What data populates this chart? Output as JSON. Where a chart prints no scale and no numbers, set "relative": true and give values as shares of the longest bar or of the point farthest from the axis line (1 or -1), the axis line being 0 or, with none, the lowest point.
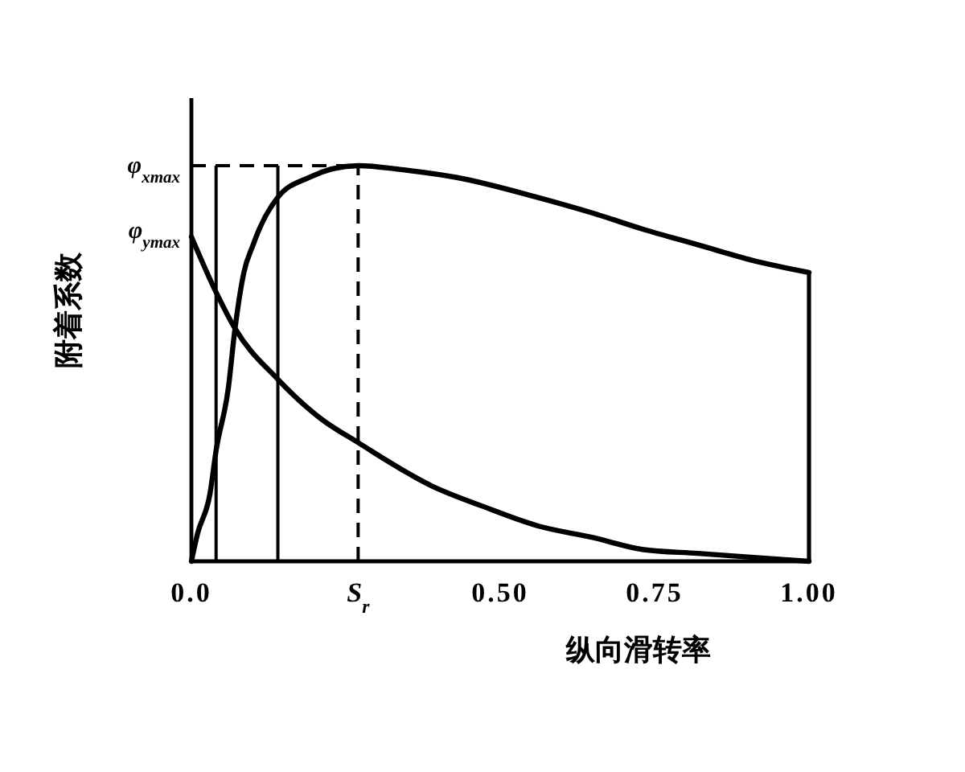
{
  "chart_data": {
    "type": "line",
    "relative": true,
    "xlabel": "纵向滑转率",
    "ylabel": "附着系数",
    "xlim": [
      0,
      1
    ],
    "xticks": [
      {
        "value": 0,
        "label": "0.0"
      },
      {
        "value": 0.27,
        "label": "S$_{r}$"
      },
      {
        "value": 0.5,
        "label": "0.50"
      },
      0.75,
      {
        "value": 1,
        "label": "1.00"
      }
    ],
    "series": [
      {
        "color": "#000000",
        "x": [
          0,
          0.01,
          0.03,
          0.04,
          0.06,
          0.07,
          0.085,
          0.1,
          0.11,
          0.14,
          0.19,
          0.27,
          0.34,
          0.43,
          0.56,
          0.65,
          0.73,
          0.82,
          0.91,
          1
        ],
        "values": [
          0,
          0.07,
          0.17,
          0.28,
          0.44,
          0.58,
          0.73,
          0.8,
          0.84,
          0.92,
          0.97,
          1,
          0.99,
          0.97,
          0.92,
          0.88,
          0.84,
          0.8,
          0.76,
          0.73
        ]
      },
      {
        "color": "#000000",
        "x": [
          0,
          0.04,
          0.07,
          0.14,
          0.21,
          0.27,
          0.39,
          0.47,
          0.56,
          0.65,
          0.73,
          0.82,
          0.91,
          1
        ],
        "values": [
          0.82,
          0.68,
          0.59,
          0.46,
          0.36,
          0.3,
          0.19,
          0.14,
          0.09,
          0.06,
          0.03,
          0.02,
          0.01,
          0
        ]
      }
    ],
    "ref_lines": [
      {
        "axis": "x",
        "value": 0.04
      },
      {
        "axis": "x",
        "value": 0.14
      },
      {
        "axis": "x",
        "value": 0.27,
        "line_style": "dashed"
      },
      {
        "axis": "y",
        "value": 1,
        "label": "φ$_{xmax}$",
        "line_style": "dashed"
      }
    ],
    "annotations": [
      {
        "text": "φ$_{ymax}$",
        "x": 0,
        "y": 0.82
      }
    ]
  }
}
